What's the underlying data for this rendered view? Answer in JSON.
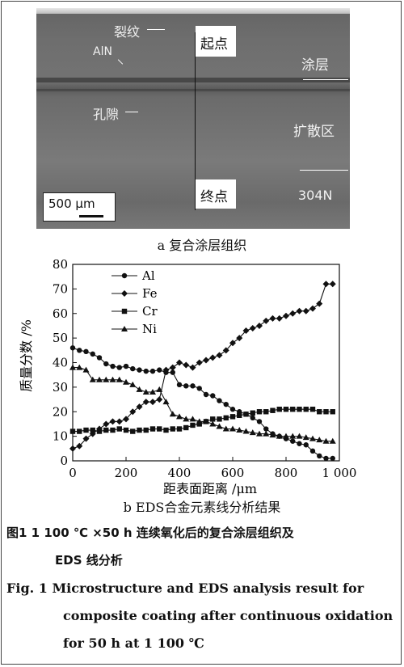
{
  "micrograph": {
    "label_crack": "裂纹",
    "label_aln": "AlN",
    "label_start": "起点",
    "label_coating": "涂层",
    "label_pore": "孔隙",
    "label_diffusion": "扩散区",
    "label_end": "终点",
    "label_substrate": "304N",
    "scale_bar": "500 μm"
  },
  "caption_a": "a 复合涂层组织",
  "caption_b": "b EDS合金元素线分析结果",
  "figure_caption_cn_line1": "图1   1 100 ℃ ×50 h 连续氧化后的复合涂层组织及",
  "figure_caption_cn_line2": "EDS 线分析",
  "figure_caption_en_line1": "Fig. 1   Microstructure and EDS analysis result for",
  "figure_caption_en_line2": "composite coating after continuous oxidation",
  "figure_caption_en_line3": "for 50 h at 1 100 ℃",
  "chart_data": {
    "type": "line",
    "xlabel": "距表面距离 /μm",
    "ylabel": "质量分数 /%",
    "xlim": [
      0,
      1000
    ],
    "ylim": [
      0,
      80
    ],
    "xticks": [
      0,
      200,
      400,
      600,
      800,
      1000
    ],
    "xtick_labels": [
      "0",
      "200",
      "400",
      "600",
      "800",
      "1 000"
    ],
    "yticks": [
      0,
      10,
      20,
      30,
      40,
      50,
      60,
      70,
      80
    ],
    "legend_position": "top-left",
    "series": [
      {
        "name": "Al",
        "marker": "circle",
        "x": [
          0,
          25,
          50,
          75,
          100,
          125,
          150,
          175,
          200,
          225,
          250,
          275,
          300,
          325,
          350,
          375,
          400,
          425,
          450,
          475,
          500,
          525,
          550,
          575,
          600,
          625,
          650,
          675,
          700,
          725,
          750,
          775,
          800,
          825,
          850,
          875,
          900,
          925,
          950,
          975
        ],
        "y": [
          46,
          45,
          44.5,
          43.5,
          42,
          39.5,
          38.5,
          38,
          38.5,
          37.5,
          37,
          36.5,
          36.5,
          37,
          36,
          36,
          31,
          30.5,
          30.5,
          29.5,
          27,
          26.5,
          24.5,
          23,
          21,
          20,
          19,
          17.5,
          16,
          13,
          11,
          10,
          9,
          8,
          7,
          6.5,
          4,
          2,
          1,
          1
        ]
      },
      {
        "name": "Fe",
        "marker": "diamond",
        "x": [
          0,
          25,
          50,
          75,
          100,
          125,
          150,
          175,
          200,
          225,
          250,
          275,
          300,
          325,
          350,
          375,
          400,
          425,
          450,
          475,
          500,
          525,
          550,
          575,
          600,
          625,
          650,
          675,
          700,
          725,
          750,
          775,
          800,
          825,
          850,
          875,
          900,
          925,
          950,
          975
        ],
        "y": [
          5,
          6,
          9,
          11,
          13,
          15,
          16,
          16,
          17,
          20,
          22,
          24,
          24,
          25,
          37,
          38,
          40,
          39,
          38,
          40,
          41,
          42,
          43,
          45,
          48,
          50,
          53,
          54,
          55,
          57,
          58,
          58,
          59,
          60,
          61,
          61,
          62,
          64,
          72,
          72
        ]
      },
      {
        "name": "Cr",
        "marker": "square",
        "x": [
          0,
          25,
          50,
          75,
          100,
          125,
          150,
          175,
          200,
          225,
          250,
          275,
          300,
          325,
          350,
          375,
          400,
          425,
          450,
          475,
          500,
          525,
          550,
          575,
          600,
          625,
          650,
          675,
          700,
          725,
          750,
          775,
          800,
          825,
          850,
          875,
          900,
          925,
          950,
          975
        ],
        "y": [
          12,
          12,
          12.5,
          12.5,
          12,
          12.5,
          12.5,
          13,
          12.5,
          12,
          12.5,
          12.5,
          13,
          13,
          12.5,
          13,
          13,
          13.5,
          14.5,
          15,
          16,
          17,
          17,
          17.5,
          18,
          18.5,
          19,
          19.5,
          20,
          20,
          20.5,
          21,
          21,
          21,
          21,
          21,
          21,
          20,
          20,
          20
        ]
      },
      {
        "name": "Ni",
        "marker": "triangle",
        "x": [
          0,
          25,
          50,
          75,
          100,
          125,
          150,
          175,
          200,
          225,
          250,
          275,
          300,
          325,
          350,
          375,
          400,
          425,
          450,
          475,
          500,
          525,
          550,
          575,
          600,
          625,
          650,
          675,
          700,
          725,
          750,
          775,
          800,
          825,
          850,
          875,
          900,
          925,
          950,
          975
        ],
        "y": [
          38,
          38,
          37,
          33,
          33,
          33,
          33,
          33,
          32,
          31,
          29,
          28,
          28,
          29,
          24,
          19,
          18,
          17,
          17,
          16,
          16,
          15,
          14,
          13,
          13,
          12.5,
          12,
          11.5,
          11,
          11,
          10.5,
          10,
          10,
          10,
          10,
          9.5,
          9,
          8.5,
          8,
          8
        ]
      }
    ]
  }
}
